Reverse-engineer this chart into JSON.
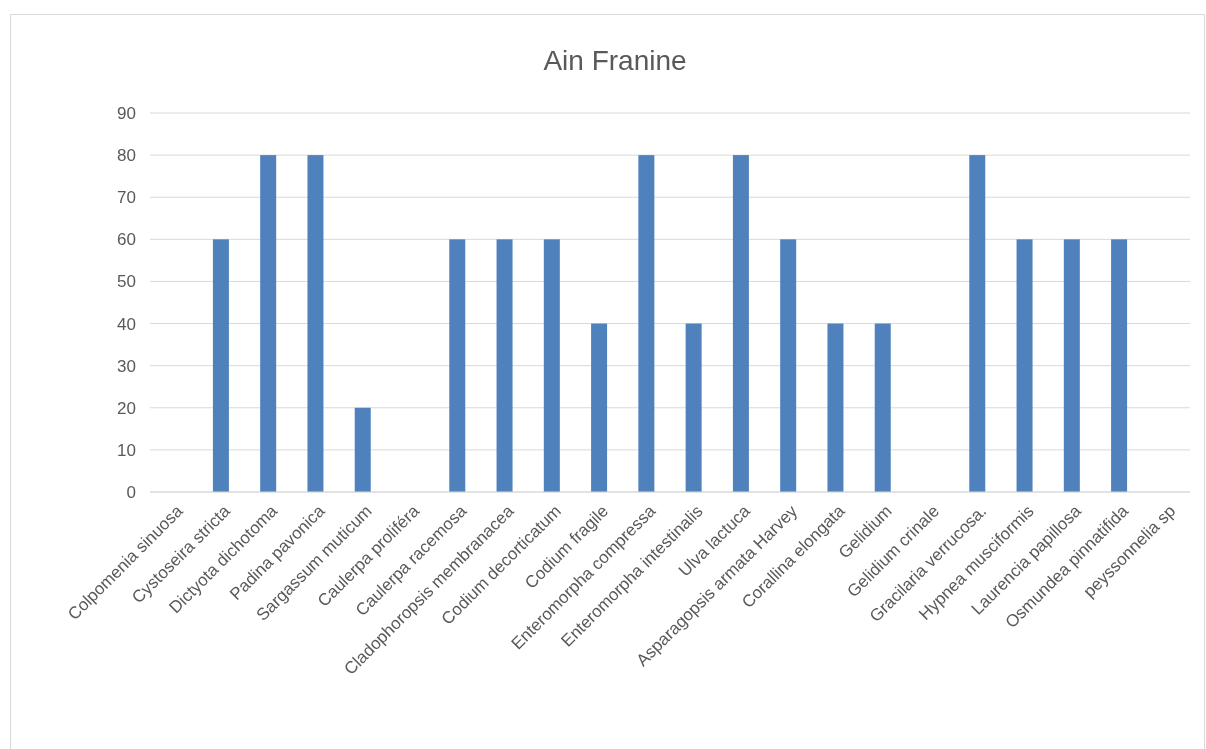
{
  "chart_data": {
    "type": "bar",
    "title": "Ain Franine",
    "categories": [
      "Colpomenia sinuosa",
      "Cystoseira stricta",
      "Dictyota dichotoma",
      "Padina pavonica",
      "Sargassum muticum",
      "Caulerpa proliféra",
      "Caulerpa racemosa",
      "Cladophoropsis membranacea",
      "Codium decorticatum",
      "Codium fragile",
      "Enteromorpha compressa",
      "Enteromorpha intestinalis",
      "Ulva lactuca",
      "Asparagopsis armata Harvey",
      "Corallina elongata",
      "Gelidium",
      "Gelidium crinale",
      "Gracilaria verrucosa.",
      "Hypnea musciformis",
      "Laurencia papillosa",
      "Osmundea pinnatifida",
      "peyssonnelia sp"
    ],
    "values": [
      0,
      60,
      80,
      80,
      20,
      0,
      60,
      60,
      60,
      40,
      80,
      40,
      80,
      60,
      40,
      40,
      0,
      80,
      60,
      60,
      60,
      0
    ],
    "color": "#4f81bd",
    "ylim": [
      0,
      90
    ],
    "yticks": [
      0,
      10,
      20,
      30,
      40,
      50,
      60,
      70,
      80,
      90
    ],
    "grid": "y"
  }
}
